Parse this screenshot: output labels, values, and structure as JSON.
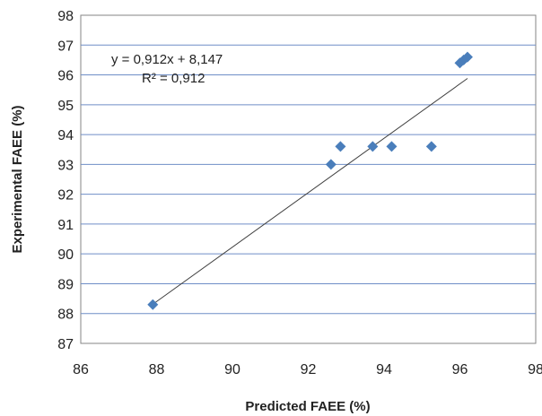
{
  "chart_data": {
    "type": "scatter",
    "xlabel": "Predicted FAEE (%)",
    "ylabel": "Experimental FAEE (%)",
    "xlim": [
      86,
      98
    ],
    "ylim": [
      87,
      98
    ],
    "x_ticks": [
      "86",
      "88",
      "90",
      "92",
      "94",
      "96",
      "98"
    ],
    "y_ticks": [
      "87",
      "88",
      "89",
      "90",
      "91",
      "92",
      "93",
      "94",
      "95",
      "96",
      "97",
      "98"
    ],
    "grid": "horizontal",
    "marker_color": "#4a7ebb",
    "line_color": "#404040",
    "points": [
      {
        "x": 87.9,
        "y": 88.3
      },
      {
        "x": 92.6,
        "y": 93.0
      },
      {
        "x": 92.85,
        "y": 93.6
      },
      {
        "x": 93.7,
        "y": 93.6
      },
      {
        "x": 94.2,
        "y": 93.6
      },
      {
        "x": 95.25,
        "y": 93.6
      },
      {
        "x": 96.0,
        "y": 96.4
      },
      {
        "x": 96.1,
        "y": 96.5
      },
      {
        "x": 96.2,
        "y": 96.6
      }
    ],
    "trendline": {
      "slope": 0.912,
      "intercept": 8.147,
      "x_range": [
        87.9,
        96.2
      ],
      "equation": "y = 0,912x + 8,147",
      "r_squared": "R² = 0,912"
    }
  }
}
